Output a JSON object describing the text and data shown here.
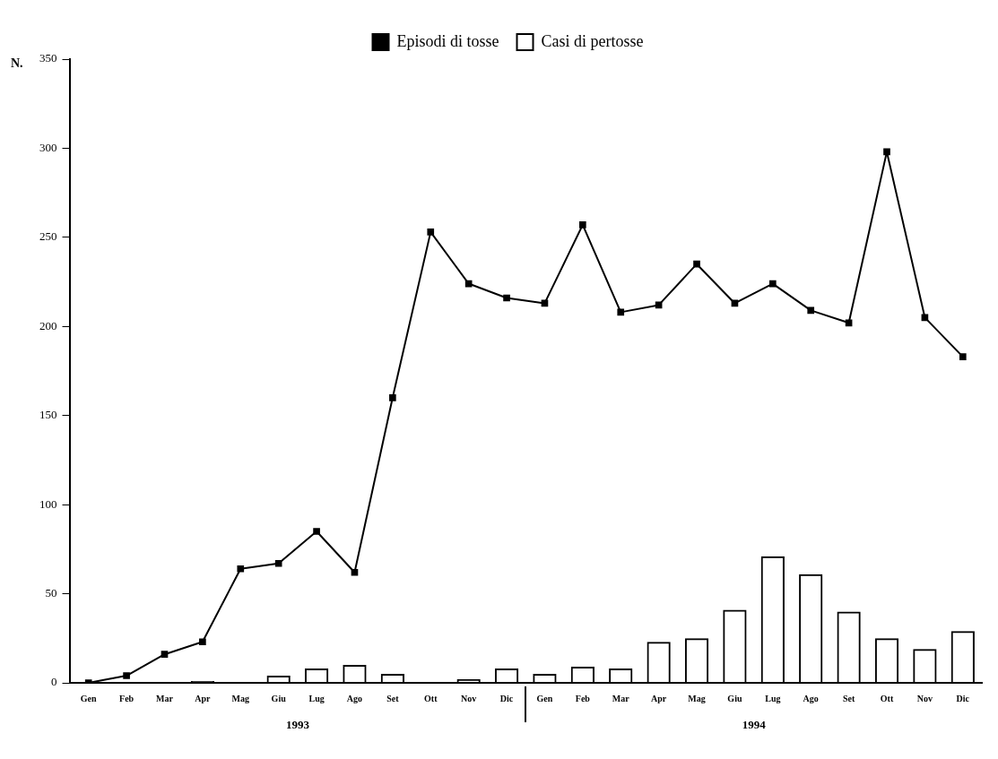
{
  "chart_data": {
    "type": "bar",
    "ylabel": "N.",
    "categories": [
      "Gen",
      "Feb",
      "Mar",
      "Apr",
      "Mag",
      "Giu",
      "Lug",
      "Ago",
      "Set",
      "Ott",
      "Nov",
      "Dic",
      "Gen",
      "Feb",
      "Mar",
      "Apr",
      "Mag",
      "Giu",
      "Lug",
      "Ago",
      "Set",
      "Ott",
      "Nov",
      "Dic"
    ],
    "series": [
      {
        "name": "Episodi di tosse",
        "type": "line",
        "color": "#000000",
        "values": [
          0,
          4,
          16,
          23,
          64,
          67,
          85,
          62,
          160,
          253,
          224,
          216,
          213,
          257,
          208,
          212,
          235,
          213,
          224,
          209,
          202,
          298,
          205,
          183
        ]
      },
      {
        "name": "Casi di pertosse",
        "color": "#000000",
        "values": [
          0,
          0,
          0,
          1,
          0,
          4,
          8,
          10,
          5,
          0,
          2,
          8,
          5,
          9,
          8,
          23,
          25,
          41,
          71,
          61,
          40,
          25,
          19,
          29
        ]
      }
    ],
    "annotations": [
      "1993",
      "1994"
    ],
    "ylim": [
      0,
      350
    ],
    "yticks": [
      0,
      50,
      100,
      150,
      200,
      250,
      300,
      350
    ],
    "grid": false,
    "legend": "top",
    "marker": "square",
    "line_style": "solid"
  }
}
